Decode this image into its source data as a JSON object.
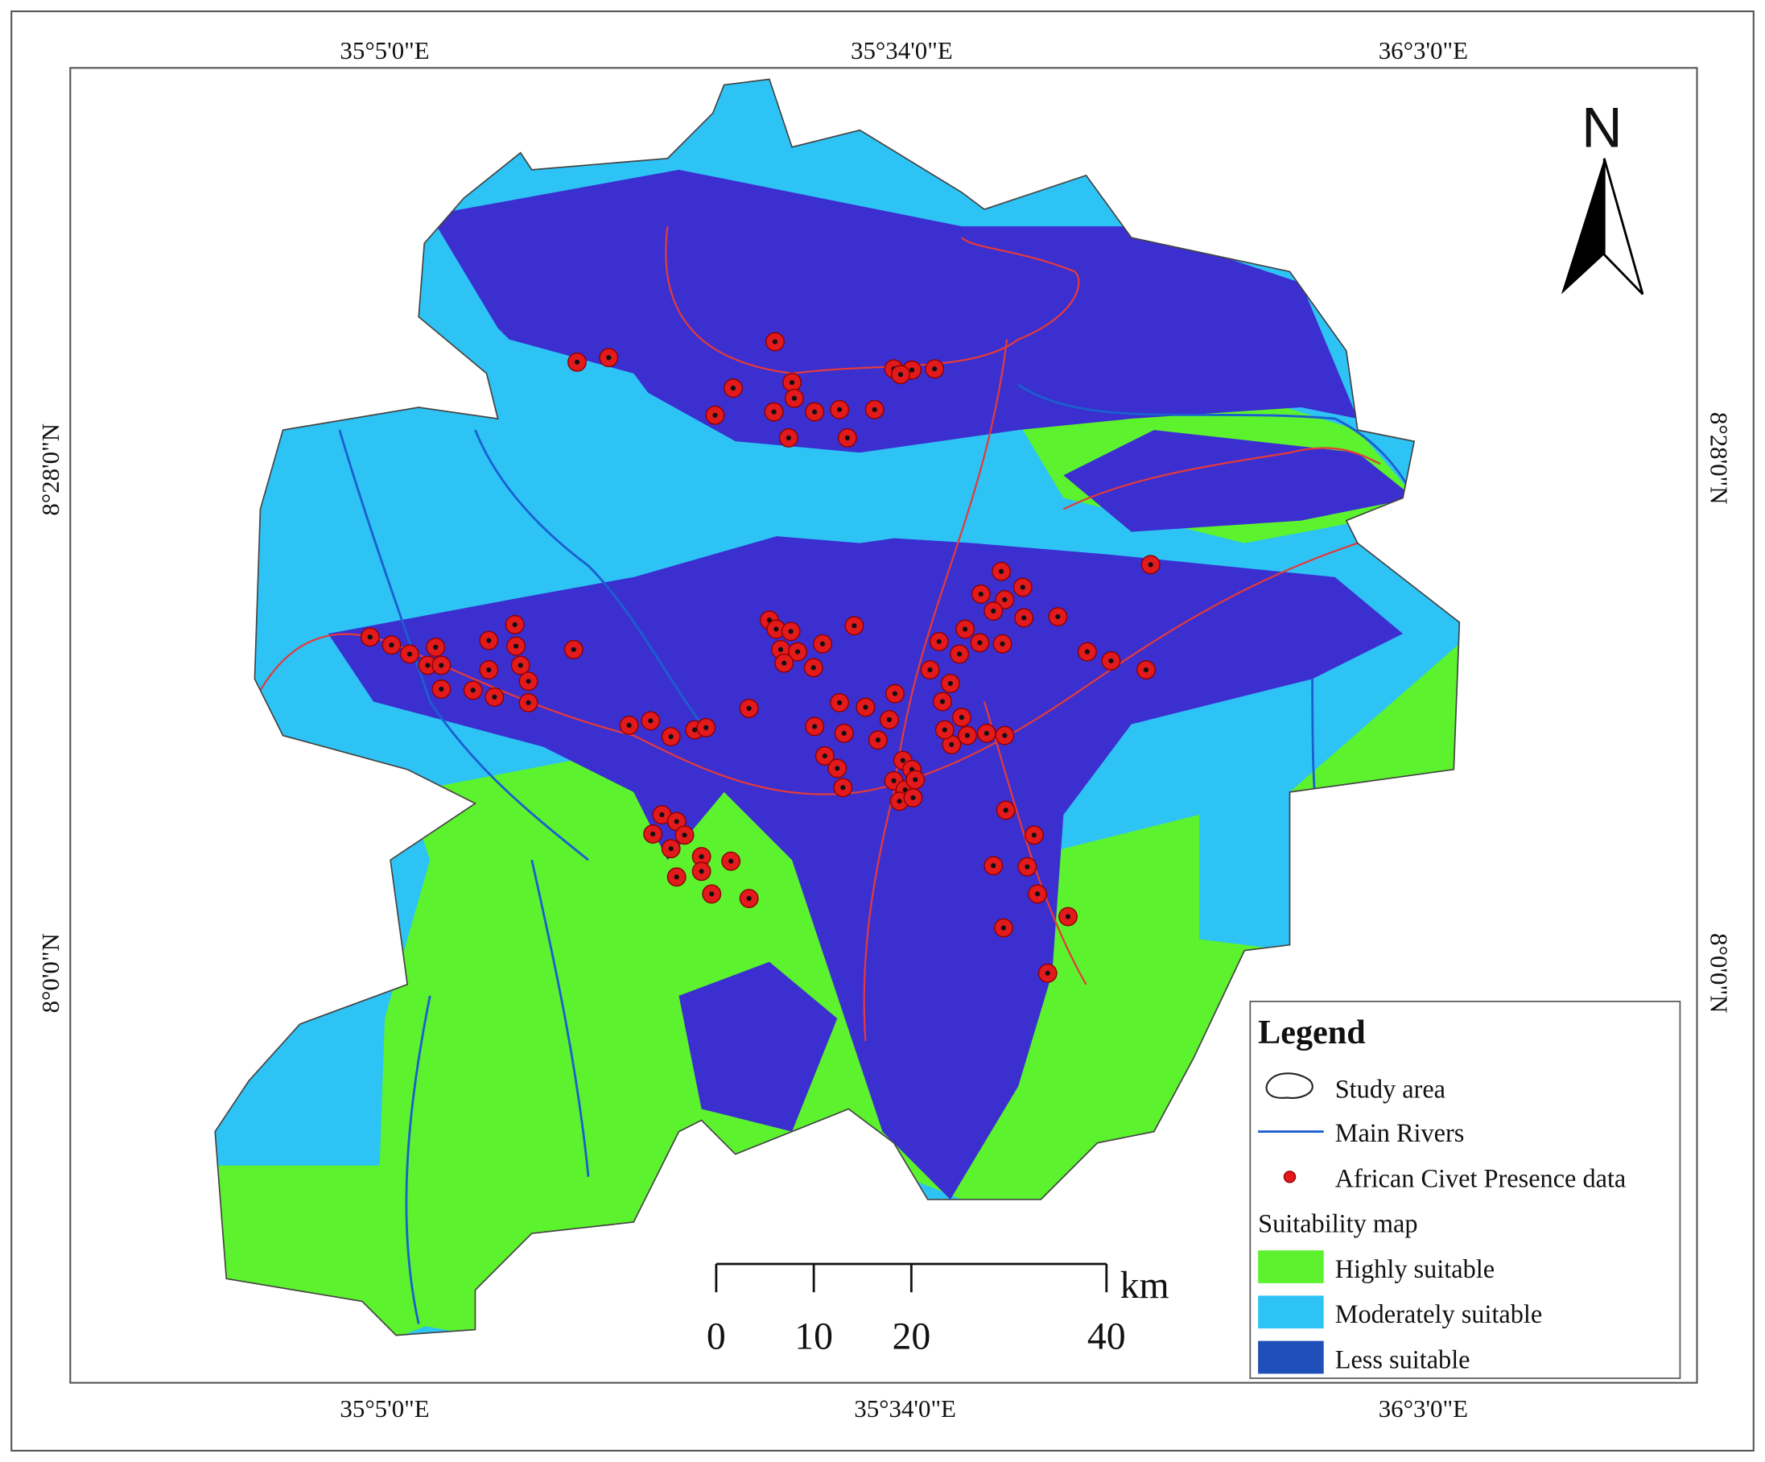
{
  "map": {
    "graticule": {
      "top": [
        "35°5'0\"E",
        "35°34'0\"E",
        "36°3'0\"E"
      ],
      "bottom": [
        "35°5'0\"E",
        "35°34'0\"E",
        "36°3'0\"E"
      ],
      "left": [
        "8°28'0\"N",
        "8°0'0\"N"
      ],
      "right": [
        "8°28'0\"N",
        "8°0'0\"N"
      ]
    },
    "north_arrow": "N",
    "scale_bar": {
      "ticks": [
        0,
        10,
        20,
        40
      ],
      "unit": "km"
    },
    "legend": {
      "title": "Legend",
      "items": [
        "Study area",
        "Main Rivers",
        "African Civet Presence data"
      ],
      "suitability_title": "Suitability map",
      "classes": [
        {
          "label": "Highly suitable",
          "color": "#5cf22e"
        },
        {
          "label": "Moderately suitable",
          "color": "#2ec3f5"
        },
        {
          "label": "Less suitable",
          "color": "#1f4fb8"
        }
      ]
    }
  }
}
